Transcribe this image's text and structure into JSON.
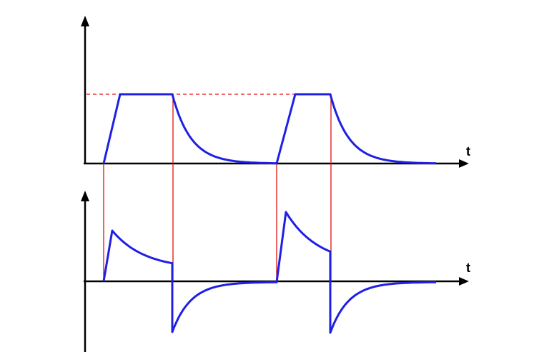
{
  "colors": {
    "waveform": "#1f1fe6",
    "guide": "#e01010",
    "axis": "#000000",
    "background": "#ffffff"
  },
  "top_plot": {
    "x_axis_label": "t",
    "shape": "trapezoid-rise-then-exponential-decay",
    "periods": 2
  },
  "bottom_plot": {
    "x_axis_label": "t",
    "shape": "peaked-positive-decay-then-negative-spike-recovery",
    "periods": 2
  },
  "icons": {
    "y_axis_arrow": "arrow-up-icon",
    "x_axis_arrow": "arrow-right-icon"
  }
}
